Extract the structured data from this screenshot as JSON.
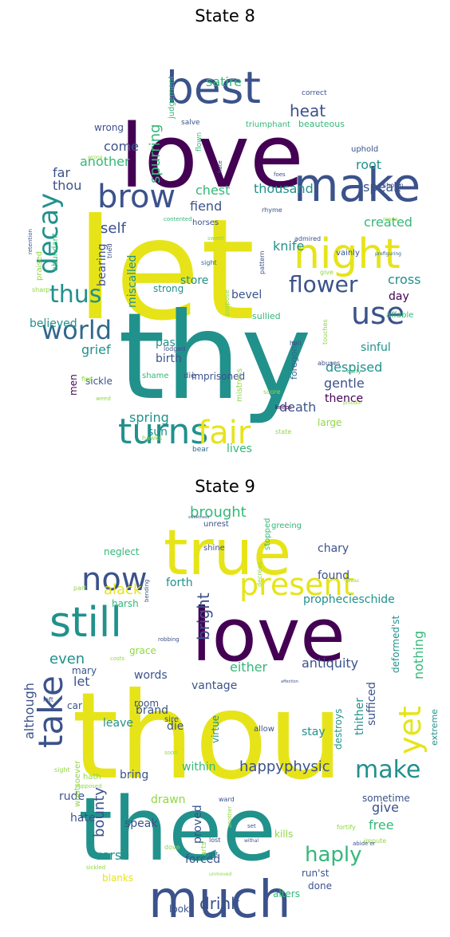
{
  "palette": {
    "dark_purple": "#440154",
    "indigo": "#3b528b",
    "blue": "#31688e",
    "teal": "#21918c",
    "green": "#35b779",
    "light_green": "#90d743",
    "yellow": "#e6e419"
  },
  "panels": [
    {
      "title": "State 8",
      "words": [
        {
          "text": "let",
          "color": "yellow"
        },
        {
          "text": "love",
          "color": "dark_purple"
        },
        {
          "text": "thy",
          "color": "teal"
        },
        {
          "text": "best",
          "color": "indigo"
        },
        {
          "text": "make",
          "color": "indigo"
        },
        {
          "text": "night",
          "color": "yellow"
        },
        {
          "text": "brow",
          "color": "indigo"
        },
        {
          "text": "turns",
          "color": "teal"
        },
        {
          "text": "fair",
          "color": "yellow"
        },
        {
          "text": "world",
          "color": "blue"
        },
        {
          "text": "use",
          "color": "indigo"
        },
        {
          "text": "thus",
          "color": "teal"
        },
        {
          "text": "flower",
          "color": "indigo"
        },
        {
          "text": "decay",
          "color": "teal"
        },
        {
          "text": "heat",
          "color": "indigo"
        },
        {
          "text": "satire",
          "color": "green"
        },
        {
          "text": "spurring",
          "color": "green"
        },
        {
          "text": "another",
          "color": "green"
        },
        {
          "text": "come",
          "color": "indigo"
        },
        {
          "text": "far",
          "color": "indigo"
        },
        {
          "text": "thou",
          "color": "indigo"
        },
        {
          "text": "chest",
          "color": "green"
        },
        {
          "text": "thousand",
          "color": "teal"
        },
        {
          "text": "root",
          "color": "teal"
        },
        {
          "text": "speak",
          "color": "indigo"
        },
        {
          "text": "fiend",
          "color": "indigo"
        },
        {
          "text": "self",
          "color": "indigo"
        },
        {
          "text": "created",
          "color": "green"
        },
        {
          "text": "knife",
          "color": "teal"
        },
        {
          "text": "store",
          "color": "teal"
        },
        {
          "text": "bearing",
          "color": "indigo"
        },
        {
          "text": "miscalled",
          "color": "teal"
        },
        {
          "text": "cross",
          "color": "teal"
        },
        {
          "text": "day",
          "color": "dark_purple"
        },
        {
          "text": "bevel",
          "color": "indigo"
        },
        {
          "text": "believed",
          "color": "teal"
        },
        {
          "text": "pass",
          "color": "teal"
        },
        {
          "text": "birth",
          "color": "indigo"
        },
        {
          "text": "sinful",
          "color": "teal"
        },
        {
          "text": "grief",
          "color": "teal"
        },
        {
          "text": "despised",
          "color": "teal"
        },
        {
          "text": "gentle",
          "color": "indigo"
        },
        {
          "text": "men",
          "color": "dark_purple"
        },
        {
          "text": "thence",
          "color": "dark_purple"
        },
        {
          "text": "death",
          "color": "indigo"
        },
        {
          "text": "spring",
          "color": "teal"
        },
        {
          "text": "sun",
          "color": "teal"
        },
        {
          "text": "lives",
          "color": "green"
        },
        {
          "text": "imprisoned",
          "color": "indigo"
        },
        {
          "text": "sickle",
          "color": "indigo"
        },
        {
          "text": "strong",
          "color": "teal"
        },
        {
          "text": "sullied",
          "color": "green"
        },
        {
          "text": "affable",
          "color": "green"
        },
        {
          "text": "mistress",
          "color": "light_green"
        },
        {
          "text": "foregone",
          "color": "blue"
        },
        {
          "text": "shame",
          "color": "green"
        },
        {
          "text": "die",
          "color": "indigo"
        },
        {
          "text": "large",
          "color": "light_green"
        },
        {
          "text": "bear",
          "color": "blue"
        },
        {
          "text": "hawks",
          "color": "light_green"
        },
        {
          "text": "state",
          "color": "light_green"
        },
        {
          "text": "keeps",
          "color": "dark_purple"
        },
        {
          "text": "score",
          "color": "light_green"
        },
        {
          "text": "abuses",
          "color": "indigo"
        },
        {
          "text": "early",
          "color": "green"
        },
        {
          "text": "proudor",
          "color": "light_green"
        },
        {
          "text": "fire",
          "color": "light_green"
        },
        {
          "text": "weed",
          "color": "light_green"
        },
        {
          "text": "lodged",
          "color": "indigo"
        },
        {
          "text": "hell",
          "color": "indigo"
        },
        {
          "text": "touches",
          "color": "light_green"
        },
        {
          "text": "purpose",
          "color": "light_green"
        },
        {
          "text": "pattern",
          "color": "indigo"
        },
        {
          "text": "vainly",
          "color": "indigo"
        },
        {
          "text": "admired",
          "color": "indigo"
        },
        {
          "text": "give",
          "color": "light_green"
        },
        {
          "text": "horses",
          "color": "indigo"
        },
        {
          "text": "contented",
          "color": "green"
        },
        {
          "text": "rhyme",
          "color": "indigo"
        },
        {
          "text": "sweet",
          "color": "light_green"
        },
        {
          "text": "sight",
          "color": "blue"
        },
        {
          "text": "flown",
          "color": "green"
        },
        {
          "text": "foes",
          "color": "indigo"
        },
        {
          "text": "hate",
          "color": "indigo"
        },
        {
          "text": "shown",
          "color": "indigo"
        },
        {
          "text": "uphold",
          "color": "indigo"
        },
        {
          "text": "roses",
          "color": "light_green"
        },
        {
          "text": "prefiguring",
          "color": "blue"
        },
        {
          "text": "wrong",
          "color": "indigo"
        },
        {
          "text": "salve",
          "color": "indigo"
        },
        {
          "text": "triumphant",
          "color": "green"
        },
        {
          "text": "beauteous",
          "color": "green"
        },
        {
          "text": "judgement",
          "color": "green"
        },
        {
          "text": "correct",
          "color": "indigo"
        },
        {
          "text": "retention",
          "color": "indigo"
        },
        {
          "text": "abundant",
          "color": "green"
        },
        {
          "text": "praised",
          "color": "light_green"
        },
        {
          "text": "sharp",
          "color": "light_green"
        },
        {
          "text": "tried",
          "color": "indigo"
        },
        {
          "text": "wrong",
          "color": "light_green"
        }
      ]
    },
    {
      "title": "State 9",
      "words": [
        {
          "text": "thou",
          "color": "yellow"
        },
        {
          "text": "thee",
          "color": "teal"
        },
        {
          "text": "love",
          "color": "dark_purple"
        },
        {
          "text": "true",
          "color": "yellow"
        },
        {
          "text": "much",
          "color": "indigo"
        },
        {
          "text": "still",
          "color": "teal"
        },
        {
          "text": "now",
          "color": "indigo"
        },
        {
          "text": "take",
          "color": "indigo"
        },
        {
          "text": "present",
          "color": "yellow"
        },
        {
          "text": "yet",
          "color": "yellow"
        },
        {
          "text": "make",
          "color": "teal"
        },
        {
          "text": "brought",
          "color": "green"
        },
        {
          "text": "haply",
          "color": "green"
        },
        {
          "text": "alack",
          "color": "yellow"
        },
        {
          "text": "bright",
          "color": "indigo"
        },
        {
          "text": "even",
          "color": "teal"
        },
        {
          "text": "let",
          "color": "indigo"
        },
        {
          "text": "either",
          "color": "green"
        },
        {
          "text": "antiquity",
          "color": "indigo"
        },
        {
          "text": "nothing",
          "color": "green"
        },
        {
          "text": "vantage",
          "color": "indigo"
        },
        {
          "text": "although",
          "color": "indigo"
        },
        {
          "text": "happyphysic",
          "color": "indigo"
        },
        {
          "text": "bounty",
          "color": "indigo"
        },
        {
          "text": "drink",
          "color": "indigo"
        },
        {
          "text": "give",
          "color": "indigo"
        },
        {
          "text": "free",
          "color": "green"
        },
        {
          "text": "verse",
          "color": "teal"
        },
        {
          "text": "within",
          "color": "green"
        },
        {
          "text": "leave",
          "color": "teal"
        },
        {
          "text": "die",
          "color": "indigo"
        },
        {
          "text": "found",
          "color": "indigo"
        },
        {
          "text": "chary",
          "color": "indigo"
        },
        {
          "text": "neglect",
          "color": "green"
        },
        {
          "text": "forth",
          "color": "teal"
        },
        {
          "text": "harsh",
          "color": "green"
        },
        {
          "text": "prophecieschide",
          "color": "teal"
        },
        {
          "text": "deformed'st",
          "color": "teal"
        },
        {
          "text": "sufficed",
          "color": "indigo"
        },
        {
          "text": "thither",
          "color": "teal"
        },
        {
          "text": "destroys",
          "color": "teal"
        },
        {
          "text": "stay",
          "color": "teal"
        },
        {
          "text": "virtue",
          "color": "teal"
        },
        {
          "text": "extreme",
          "color": "teal"
        },
        {
          "text": "words",
          "color": "indigo"
        },
        {
          "text": "mary",
          "color": "indigo"
        },
        {
          "text": "grace",
          "color": "light_green"
        },
        {
          "text": "room",
          "color": "indigo"
        },
        {
          "text": "brand",
          "color": "indigo"
        },
        {
          "text": "car",
          "color": "indigo"
        },
        {
          "text": "bring",
          "color": "indigo"
        },
        {
          "text": "drawn",
          "color": "light_green"
        },
        {
          "text": "speak",
          "color": "indigo"
        },
        {
          "text": "rude",
          "color": "indigo"
        },
        {
          "text": "hate",
          "color": "indigo"
        },
        {
          "text": "proved",
          "color": "indigo"
        },
        {
          "text": "forced",
          "color": "indigo"
        },
        {
          "text": "sometime",
          "color": "indigo"
        },
        {
          "text": "kills",
          "color": "light_green"
        },
        {
          "text": "run'st",
          "color": "indigo"
        },
        {
          "text": "done",
          "color": "indigo"
        },
        {
          "text": "alters",
          "color": "green"
        },
        {
          "text": "look",
          "color": "indigo"
        },
        {
          "text": "blanks",
          "color": "yellow"
        },
        {
          "text": "hath",
          "color": "light_green"
        },
        {
          "text": "whatsoever",
          "color": "light_green"
        },
        {
          "text": "sire",
          "color": "indigo"
        },
        {
          "text": "allow",
          "color": "indigo"
        },
        {
          "text": "shine",
          "color": "indigo"
        },
        {
          "text": "unrest",
          "color": "indigo"
        },
        {
          "text": "greeing",
          "color": "green"
        },
        {
          "text": "stopped",
          "color": "green"
        },
        {
          "text": "part",
          "color": "light_green"
        },
        {
          "text": "decrees",
          "color": "light_green"
        },
        {
          "text": "costs",
          "color": "light_green"
        },
        {
          "text": "robbing",
          "color": "indigo"
        },
        {
          "text": "affection",
          "color": "indigo"
        },
        {
          "text": "left",
          "color": "indigo"
        },
        {
          "text": "sight",
          "color": "light_green"
        },
        {
          "text": "soon",
          "color": "light_green"
        },
        {
          "text": "ward",
          "color": "indigo"
        },
        {
          "text": "fortify",
          "color": "light_green"
        },
        {
          "text": "impute",
          "color": "light_green"
        },
        {
          "text": "set",
          "color": "indigo"
        },
        {
          "text": "lost",
          "color": "indigo"
        },
        {
          "text": "dove",
          "color": "light_green"
        },
        {
          "text": "arts",
          "color": "light_green"
        },
        {
          "text": "got",
          "color": "indigo"
        },
        {
          "text": "abide'er",
          "color": "indigo"
        },
        {
          "text": "sickled",
          "color": "light_green"
        },
        {
          "text": "unmoved",
          "color": "light_green"
        },
        {
          "text": "another",
          "color": "light_green"
        },
        {
          "text": "sweetness",
          "color": "indigo"
        },
        {
          "text": "pleas",
          "color": "light_green"
        },
        {
          "text": "bending",
          "color": "indigo"
        },
        {
          "text": "supposed",
          "color": "light_green"
        },
        {
          "text": "withal",
          "color": "indigo"
        }
      ]
    }
  ]
}
